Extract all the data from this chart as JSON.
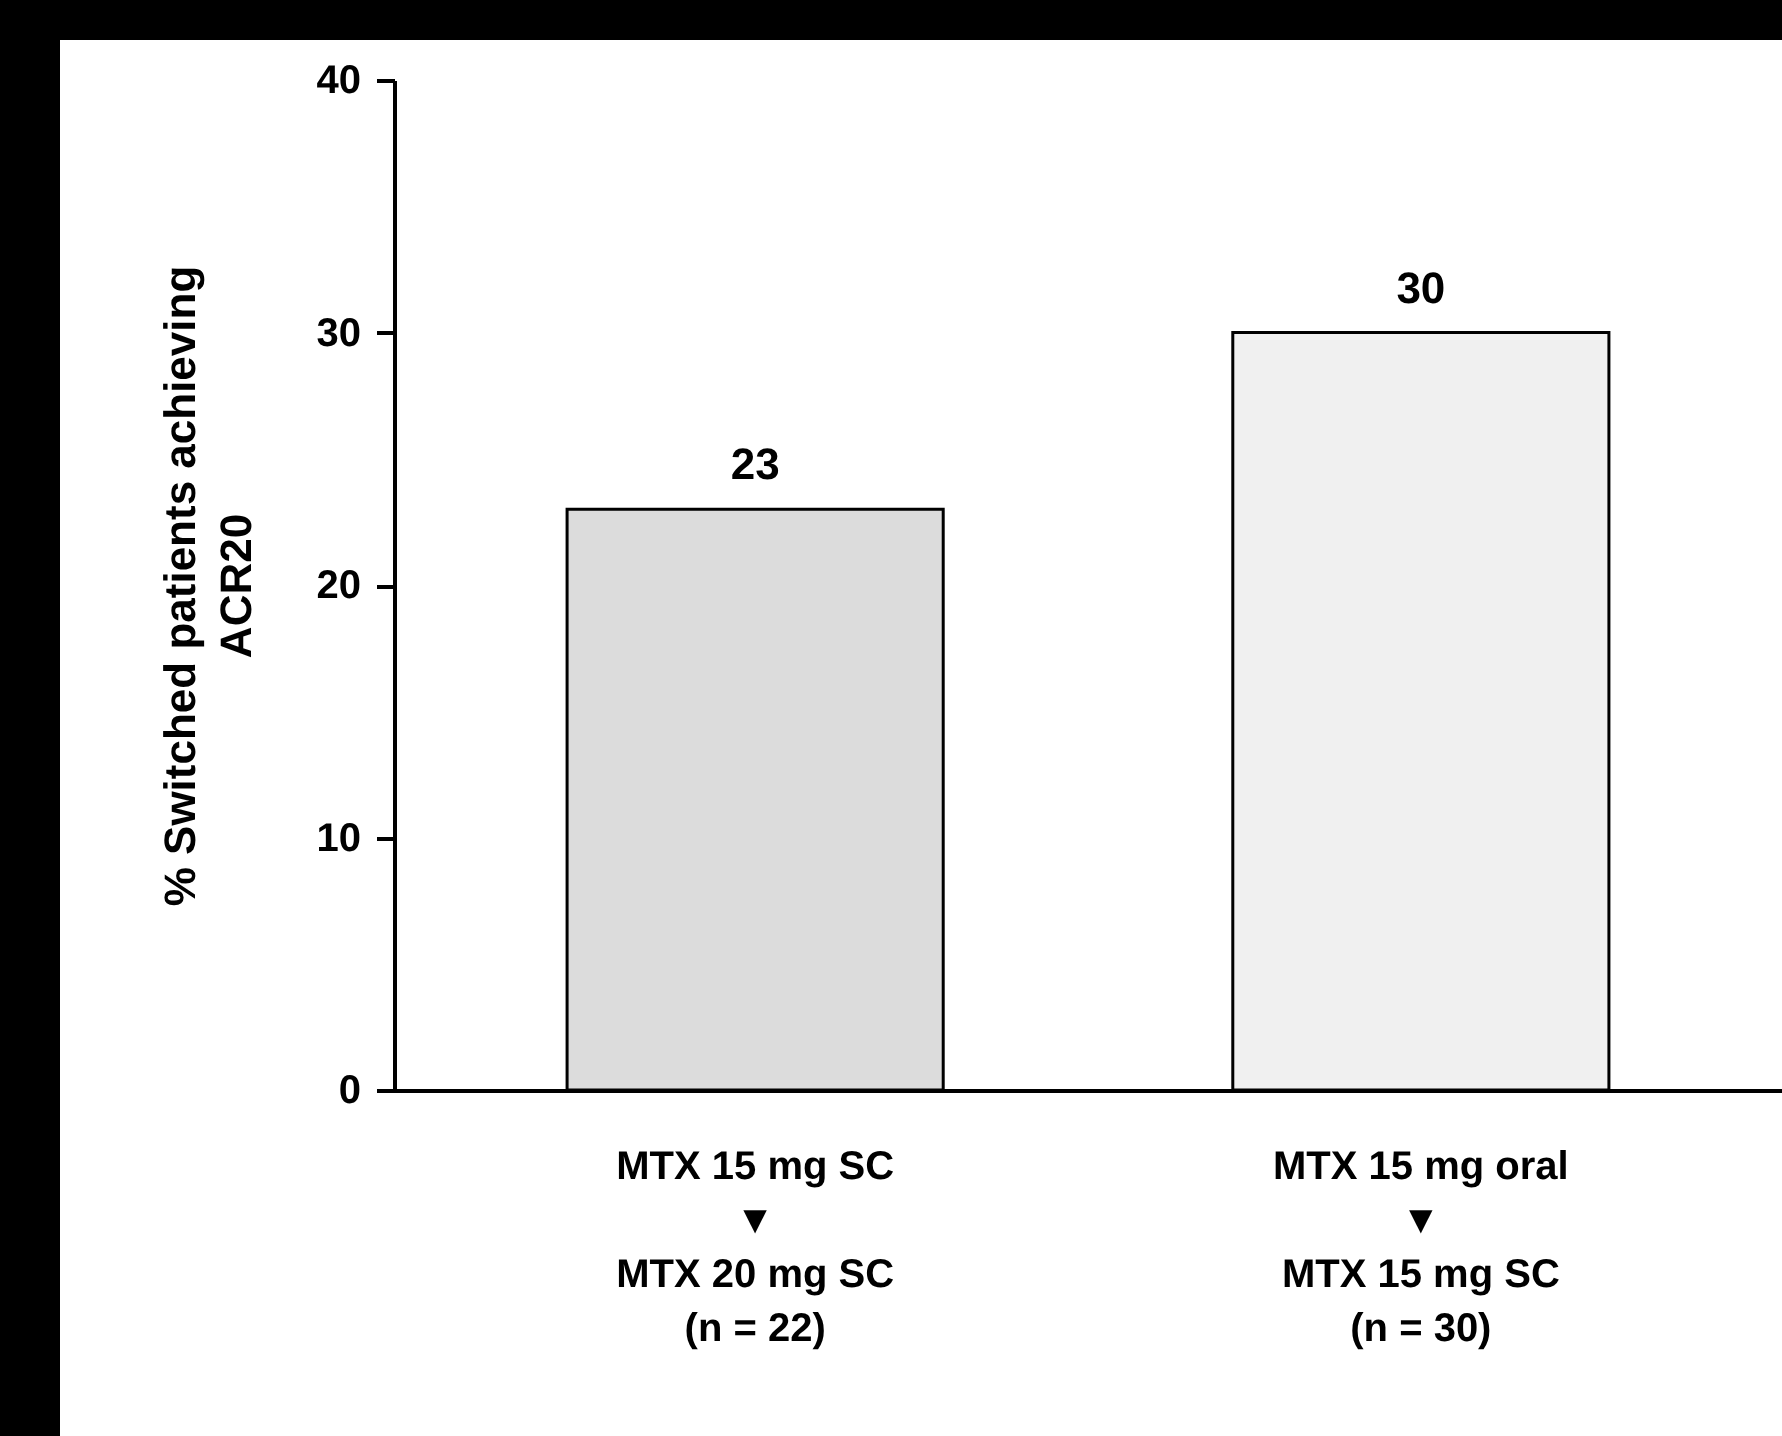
{
  "chart_data": {
    "type": "bar",
    "ylabel": "% Switched patients achieving\nACR20",
    "categories": [
      "MTX 15 mg SC\n▼\nMTX 20 mg SC\n(n = 22)",
      "MTX 15 mg oral\n▼\nMTX 15 mg SC\n(n = 30)"
    ],
    "values": [
      23,
      30
    ],
    "colors": [
      "#dcdcdc",
      "#f0f0f0"
    ],
    "ylim": [
      0,
      40
    ],
    "yticks": [
      0,
      10,
      20,
      30,
      40
    ],
    "grid": false,
    "data_labels": true
  }
}
